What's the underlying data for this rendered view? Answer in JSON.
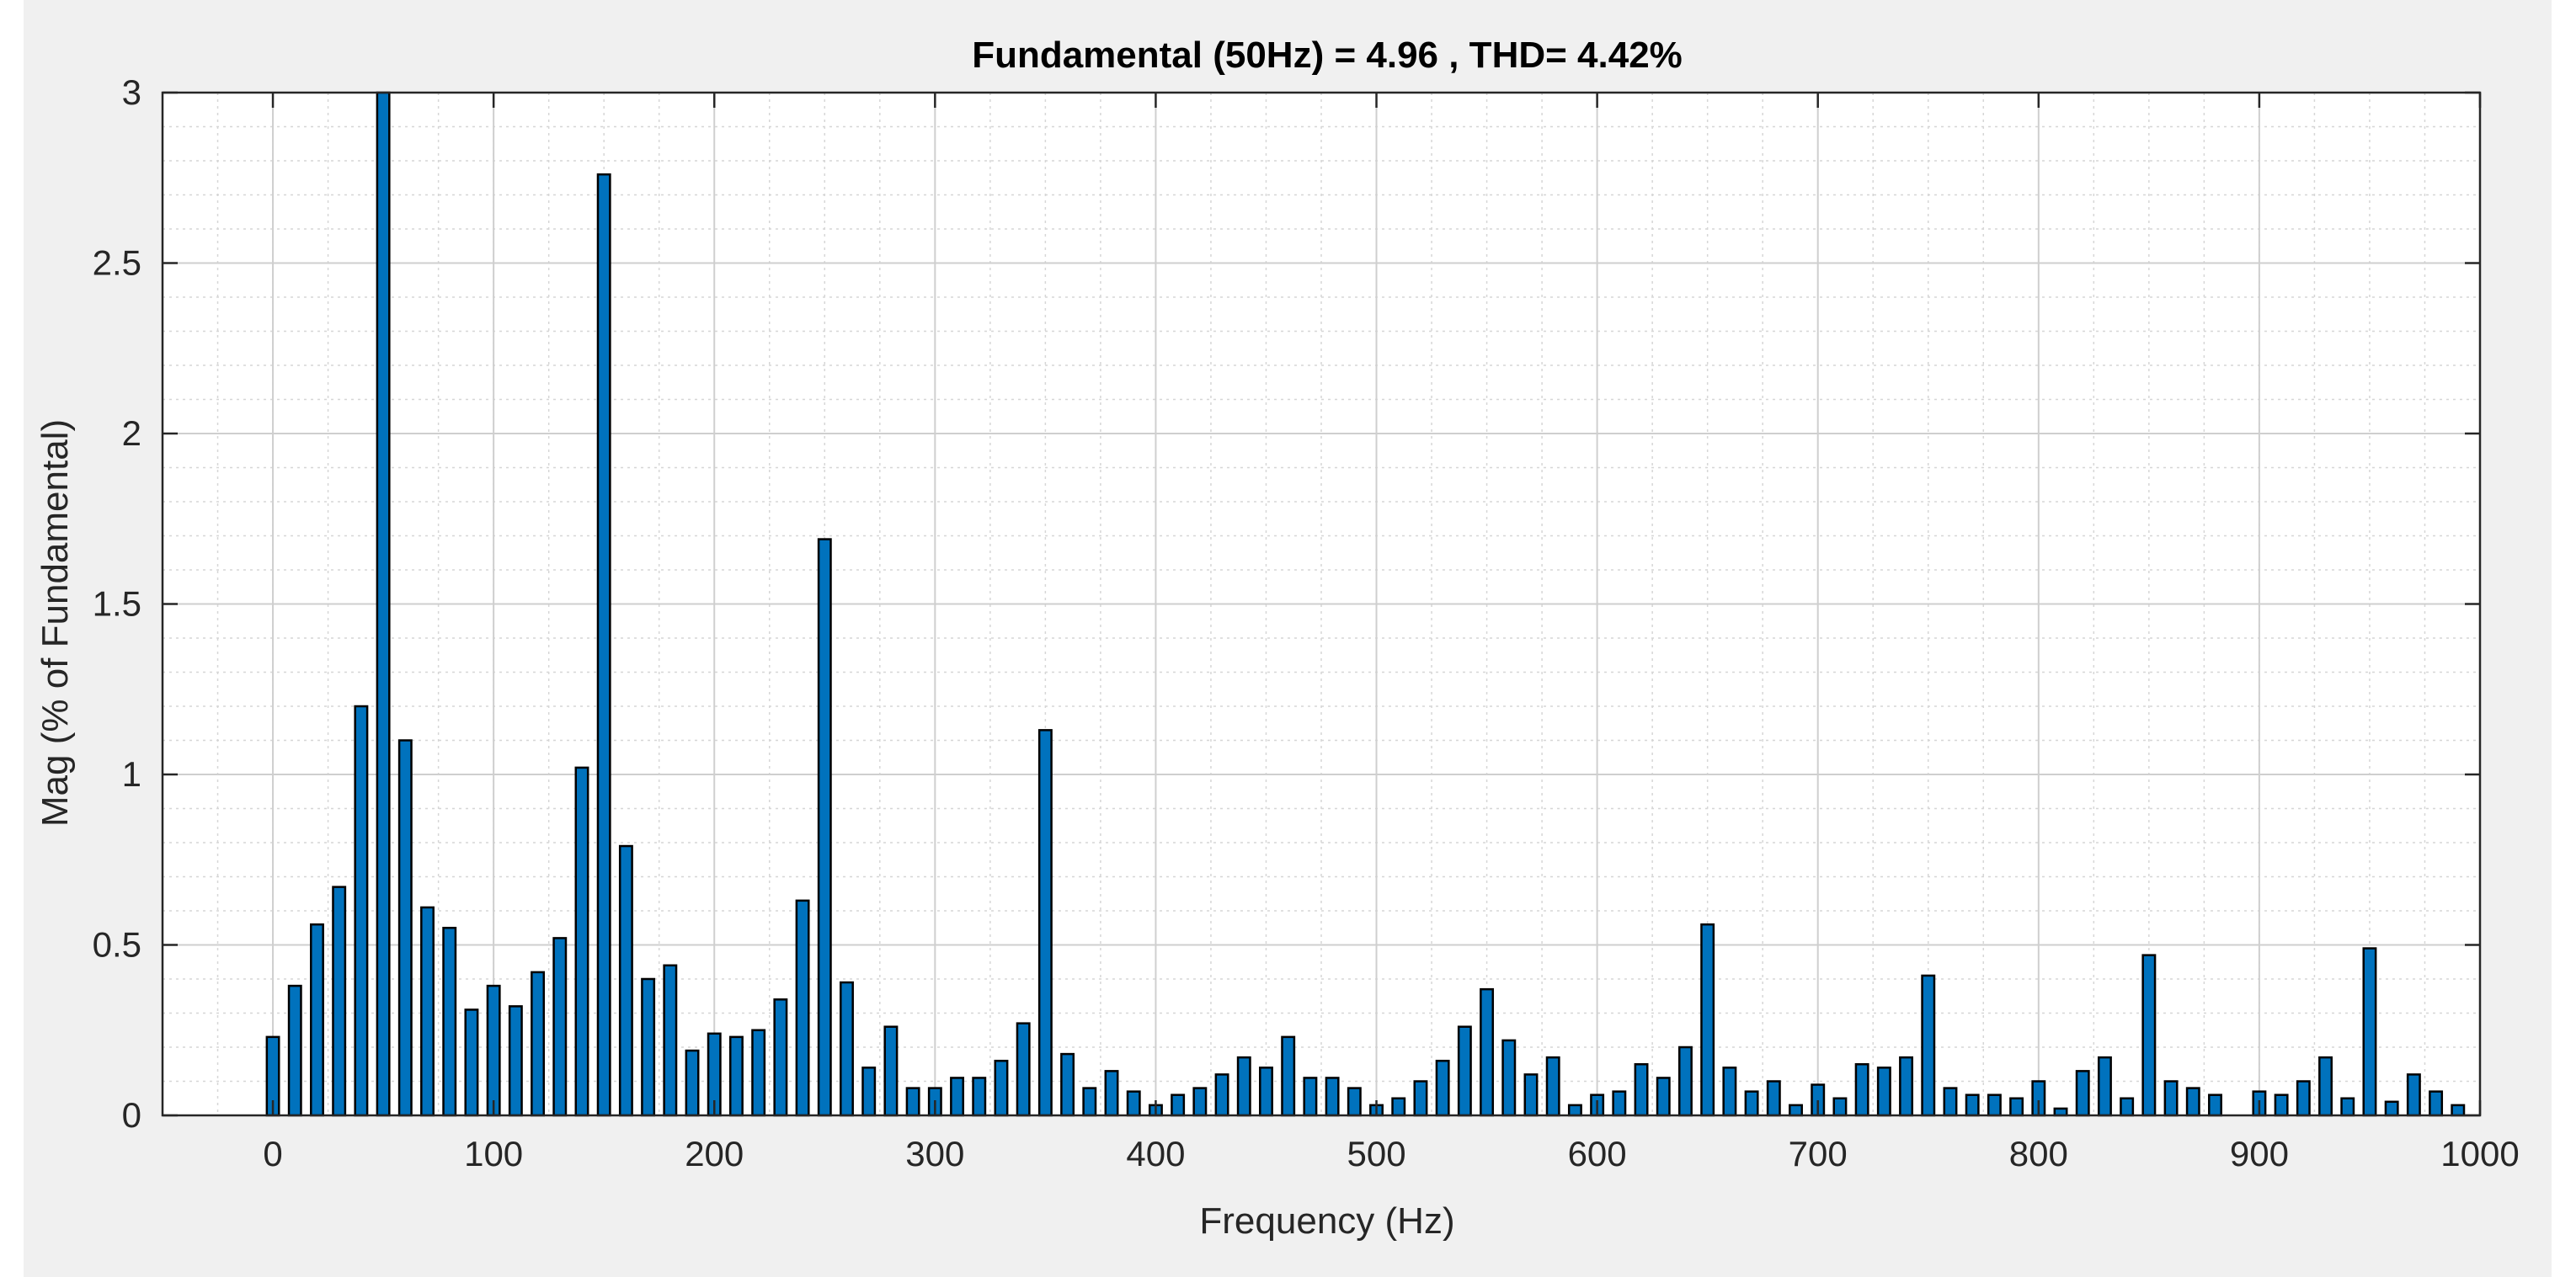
{
  "chart_data": {
    "type": "bar",
    "title": "Fundamental (50Hz) = 4.96 , THD= 4.42%",
    "xlabel": "Frequency (Hz)",
    "ylabel": "Mag (% of Fundamental)",
    "xlim": [
      -50,
      1000
    ],
    "ylim": [
      0,
      3
    ],
    "xticks": [
      0,
      100,
      200,
      300,
      400,
      500,
      600,
      700,
      800,
      900,
      1000
    ],
    "yticks": [
      0,
      0.5,
      1,
      1.5,
      2,
      2.5,
      3
    ],
    "ytick_labels": [
      "0",
      "0.5",
      "1",
      "1.5",
      "2",
      "2.5",
      "3"
    ],
    "grid": true,
    "minor_grid": true,
    "bar_color": "#0072bd",
    "x": [
      0,
      10,
      20,
      30,
      40,
      50,
      60,
      70,
      80,
      90,
      100,
      110,
      120,
      130,
      140,
      150,
      160,
      170,
      180,
      190,
      200,
      210,
      220,
      230,
      240,
      250,
      260,
      270,
      280,
      290,
      300,
      310,
      320,
      330,
      340,
      350,
      360,
      370,
      380,
      390,
      400,
      410,
      420,
      430,
      440,
      450,
      460,
      470,
      480,
      490,
      500,
      510,
      520,
      530,
      540,
      550,
      560,
      570,
      580,
      590,
      600,
      610,
      620,
      630,
      640,
      650,
      660,
      670,
      680,
      690,
      700,
      710,
      720,
      730,
      740,
      750,
      760,
      770,
      780,
      790,
      800,
      810,
      820,
      830,
      840,
      850,
      860,
      870,
      880,
      890,
      900,
      910,
      920,
      930,
      940,
      950,
      960,
      970,
      980,
      990
    ],
    "values": [
      0.23,
      0.38,
      0.56,
      0.67,
      1.2,
      3.05,
      1.1,
      0.61,
      0.55,
      0.31,
      0.38,
      0.32,
      0.42,
      0.52,
      1.02,
      2.76,
      0.79,
      0.4,
      0.44,
      0.19,
      0.24,
      0.23,
      0.25,
      0.34,
      0.63,
      1.69,
      0.39,
      0.14,
      0.26,
      0.08,
      0.08,
      0.11,
      0.11,
      0.16,
      0.27,
      1.13,
      0.18,
      0.08,
      0.13,
      0.07,
      0.03,
      0.06,
      0.08,
      0.12,
      0.17,
      0.14,
      0.23,
      0.11,
      0.11,
      0.08,
      0.03,
      0.05,
      0.1,
      0.16,
      0.26,
      0.37,
      0.22,
      0.12,
      0.17,
      0.03,
      0.06,
      0.07,
      0.15,
      0.11,
      0.2,
      0.56,
      0.14,
      0.07,
      0.1,
      0.03,
      0.09,
      0.05,
      0.15,
      0.14,
      0.17,
      0.41,
      0.08,
      0.06,
      0.06,
      0.05,
      0.1,
      0.02,
      0.13,
      0.17,
      0.05,
      0.47,
      0.1,
      0.08,
      0.06,
      0,
      0.07,
      0.06,
      0.1,
      0.17,
      0.05,
      0.49,
      0.04,
      0.12,
      0.07,
      0.03
    ]
  }
}
